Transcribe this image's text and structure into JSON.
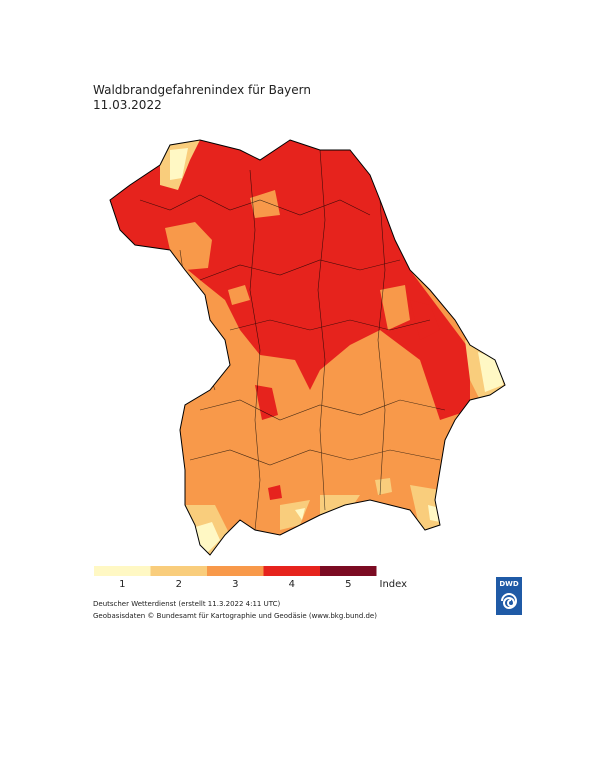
{
  "header": {
    "title": "Waldbrandgefahrenindex für Bayern",
    "date": "11.03.2022"
  },
  "legend": {
    "items": [
      {
        "label": "1",
        "color": "#fff8c4"
      },
      {
        "label": "2",
        "color": "#f9cd7c"
      },
      {
        "label": "3",
        "color": "#f8994a"
      },
      {
        "label": "4",
        "color": "#e6231d"
      },
      {
        "label": "5",
        "color": "#7b0b22"
      }
    ],
    "unit": "Index"
  },
  "credits": [
    "Deutscher Wetterdienst (erstellt 11.3.2022 4:11 UTC)",
    "Geobasisdaten © Bundesamt für Kartographie und Geodäsie (www.bkg.bund.de)"
  ],
  "logo": "DWD"
}
